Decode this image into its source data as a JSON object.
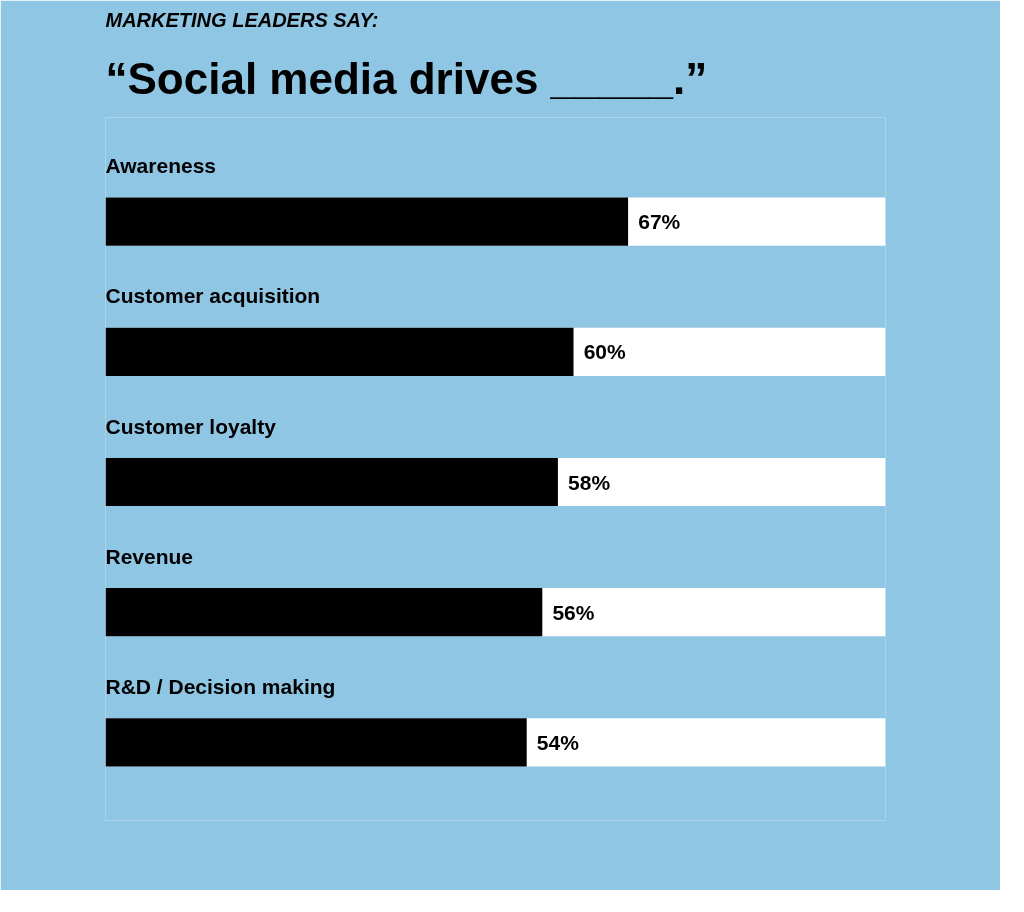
{
  "chart_data": {
    "type": "bar",
    "orientation": "horizontal",
    "title": "MARKETING LEADERS SAY:",
    "subtitle": "“Social media drives _____.”",
    "categories": [
      "Awareness",
      "Customer acquisition",
      "Customer loyalty",
      "Revenue",
      "R&D / Decision making"
    ],
    "series": [
      {
        "color": "#000000",
        "values": [
          67,
          60,
          58,
          56,
          54
        ],
        "value_labels": [
          "67%",
          "60%",
          "58%",
          "56%",
          "54%"
        ]
      }
    ],
    "bands": [
      {
        "axis": "x",
        "from": 0,
        "to": 100,
        "color": "#ffffff"
      }
    ],
    "tick_labels": false
  }
}
